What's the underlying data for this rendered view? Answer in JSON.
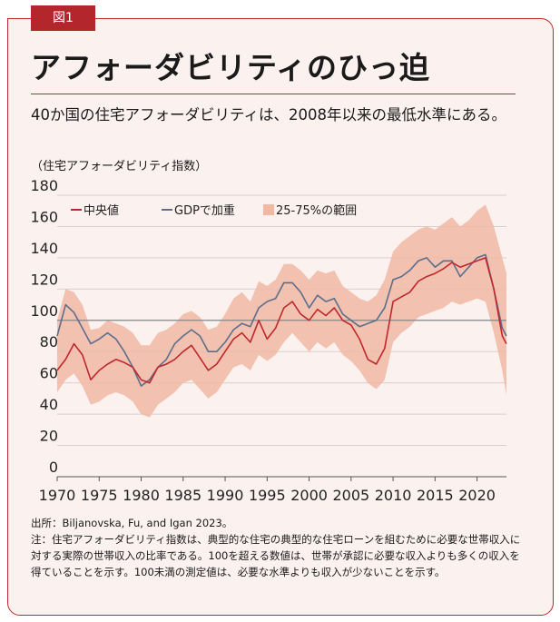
{
  "figure_label": "図1",
  "title": "アフォーダビリティのひっ迫",
  "subtitle": "40か国の住宅アフォーダビリティは、2008年以来の最低水準にある。",
  "unit_label": "（住宅アフォーダビリティ指数）",
  "source": "出所：Biljanovska, Fu, and Igan 2023。",
  "note": "注：住宅アフォーダビリティ指数は、典型的な住宅の典型的な住宅ローンを組むために必要な世帯収入に対する実際の世帯収入の比率である。100を超える数値は、世帯が承認に必要な収入よりも多くの収入を得ていることを示す。100未満の測定値は、必要な水準よりも収入が少ないことを示す。",
  "colors": {
    "median": "#c0272d",
    "gdp": "#5b6f8c",
    "band": "#f0b9a4",
    "ref": "#888888",
    "accent": "#b3262c"
  },
  "chart_data": {
    "type": "line",
    "title": "",
    "xlabel": "",
    "ylabel": "（住宅アフォーダビリティ指数）",
    "xlim": [
      1970,
      2023.5
    ],
    "ylim": [
      0,
      180
    ],
    "xticks": [
      1970,
      1975,
      1980,
      1985,
      1990,
      1995,
      2000,
      2005,
      2010,
      2015,
      2020
    ],
    "yticks": [
      0,
      20,
      40,
      60,
      80,
      100,
      120,
      140,
      160,
      180
    ],
    "reference_line": 100,
    "legend_position": "top-left",
    "legend": [
      "中央値",
      "GDPで加重",
      "25-75%の範囲"
    ],
    "x": [
      1970,
      1971,
      1972,
      1973,
      1974,
      1975,
      1976,
      1977,
      1978,
      1979,
      1980,
      1981,
      1982,
      1983,
      1984,
      1985,
      1986,
      1987,
      1988,
      1989,
      1990,
      1991,
      1992,
      1993,
      1994,
      1995,
      1996,
      1997,
      1998,
      1999,
      2000,
      2001,
      2002,
      2003,
      2004,
      2005,
      2006,
      2007,
      2008,
      2009,
      2010,
      2011,
      2012,
      2013,
      2014,
      2015,
      2016,
      2017,
      2018,
      2019,
      2020,
      2021,
      2022,
      2023,
      2023.5
    ],
    "series": [
      {
        "name": "中央値",
        "values": [
          68,
          75,
          85,
          78,
          62,
          68,
          72,
          75,
          73,
          70,
          62,
          60,
          70,
          72,
          75,
          80,
          84,
          76,
          68,
          72,
          80,
          88,
          92,
          86,
          100,
          88,
          95,
          108,
          112,
          104,
          100,
          107,
          103,
          108,
          100,
          97,
          88,
          75,
          72,
          82,
          112,
          115,
          118,
          125,
          128,
          130,
          133,
          137,
          134,
          136,
          138,
          140,
          120,
          90,
          85
        ]
      },
      {
        "name": "GDPで加重",
        "values": [
          90,
          110,
          105,
          95,
          85,
          88,
          92,
          88,
          80,
          70,
          58,
          62,
          70,
          75,
          85,
          90,
          94,
          90,
          80,
          80,
          86,
          94,
          98,
          96,
          108,
          112,
          114,
          124,
          124,
          118,
          108,
          116,
          112,
          114,
          104,
          100,
          96,
          98,
          100,
          108,
          126,
          128,
          132,
          138,
          140,
          134,
          138,
          138,
          128,
          134,
          140,
          142,
          120,
          95,
          90
        ]
      },
      {
        "name": "25-75%の範囲 上限",
        "values": [
          100,
          120,
          118,
          110,
          94,
          95,
          100,
          98,
          96,
          92,
          84,
          84,
          92,
          94,
          98,
          104,
          106,
          102,
          94,
          96,
          104,
          114,
          118,
          112,
          125,
          122,
          126,
          136,
          136,
          132,
          126,
          132,
          130,
          132,
          122,
          118,
          114,
          112,
          116,
          126,
          144,
          150,
          154,
          158,
          160,
          158,
          162,
          166,
          160,
          164,
          170,
          174,
          160,
          140,
          130
        ]
      },
      {
        "name": "25-75%の範囲 下限",
        "values": [
          54,
          62,
          66,
          58,
          46,
          48,
          52,
          54,
          52,
          48,
          40,
          38,
          46,
          50,
          54,
          60,
          62,
          56,
          50,
          54,
          62,
          70,
          72,
          68,
          78,
          74,
          78,
          86,
          92,
          86,
          80,
          86,
          82,
          86,
          78,
          74,
          68,
          60,
          56,
          62,
          86,
          92,
          96,
          102,
          104,
          106,
          108,
          112,
          110,
          112,
          114,
          112,
          92,
          68,
          52
        ]
      }
    ]
  }
}
